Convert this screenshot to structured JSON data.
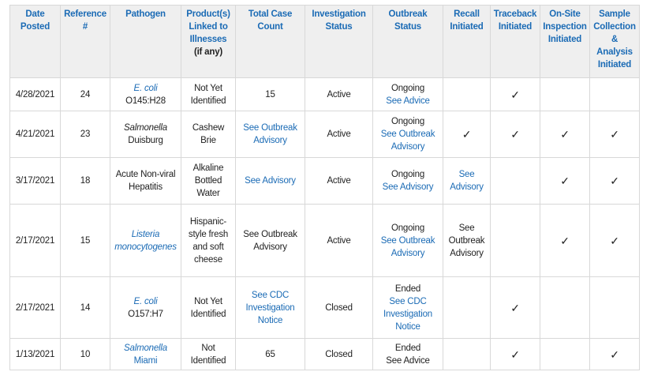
{
  "header": {
    "columns": [
      "Date Posted",
      "Reference #",
      "Pathogen",
      {
        "title": "Product(s) Linked to Illnesses",
        "note": "(if any)"
      },
      "Total Case Count",
      "Investigation Status",
      "Outbreak Status",
      "Recall Initiated",
      "Traceback Initiated",
      "On-Site Inspection Initiated",
      "Sample Collection & Analysis Initiated"
    ]
  },
  "table": {
    "rows": [
      {
        "date": "4/28/2021",
        "ref": "24",
        "pathogen": {
          "genus": "E. coli",
          "strain": "O145:H28"
        },
        "product": "Not Yet Identified",
        "cases": "15",
        "investigation": "Active",
        "outbreak": {
          "status": "Ongoing",
          "link": "See Advice"
        },
        "traceback": "✓"
      },
      {
        "date": "4/21/2021",
        "ref": "23",
        "pathogen": {
          "genus": "Salmonella",
          "strain": "Duisburg"
        },
        "product": "Cashew Brie",
        "cases": "See Outbreak Advisory",
        "investigation": "Active",
        "outbreak": {
          "status": "Ongoing",
          "link": "See Outbreak Advisory"
        },
        "recall": "✓",
        "traceback": "✓",
        "onsite": "✓",
        "sample": "✓"
      },
      {
        "date": "3/17/2021",
        "ref": "18",
        "pathogen": {
          "name": "Acute Non-viral Hepatitis"
        },
        "product": "Alkaline Bottled Water",
        "cases": "See Advisory",
        "investigation": "Active",
        "outbreak": {
          "status": "Ongoing",
          "link": "See Advisory"
        },
        "recall": "See Advisory",
        "onsite": "✓",
        "sample": "✓"
      },
      {
        "date": "2/17/2021",
        "ref": "15",
        "pathogen": {
          "genus": "Listeria",
          "strain": "monocytogenes"
        },
        "product": "Hispanic-style fresh and soft cheese",
        "cases": "See Outbreak Advisory",
        "investigation": "Active",
        "outbreak": {
          "status": "Ongoing",
          "link": "See Outbreak Advisory"
        },
        "recall": "See Outbreak Advisory",
        "onsite": "✓",
        "sample": "✓"
      },
      {
        "date": "2/17/2021",
        "ref": "14",
        "pathogen": {
          "genus": "E. coli",
          "strain": "O157:H7"
        },
        "product": "Not Yet Identified",
        "cases": "See CDC Investigation Notice",
        "investigation": "Closed",
        "outbreak": {
          "status": "Ended",
          "link": "See CDC Investigation Notice"
        },
        "traceback": "✓"
      },
      {
        "date": "1/13/2021",
        "ref": "10",
        "pathogen": {
          "genus": "Salmonella",
          "strain": "Miami"
        },
        "product": "Not Identified",
        "cases": "65",
        "investigation": "Closed",
        "outbreak": {
          "status": "Ended",
          "link": "See Advice"
        },
        "traceback": "✓",
        "sample": "✓"
      }
    ]
  }
}
